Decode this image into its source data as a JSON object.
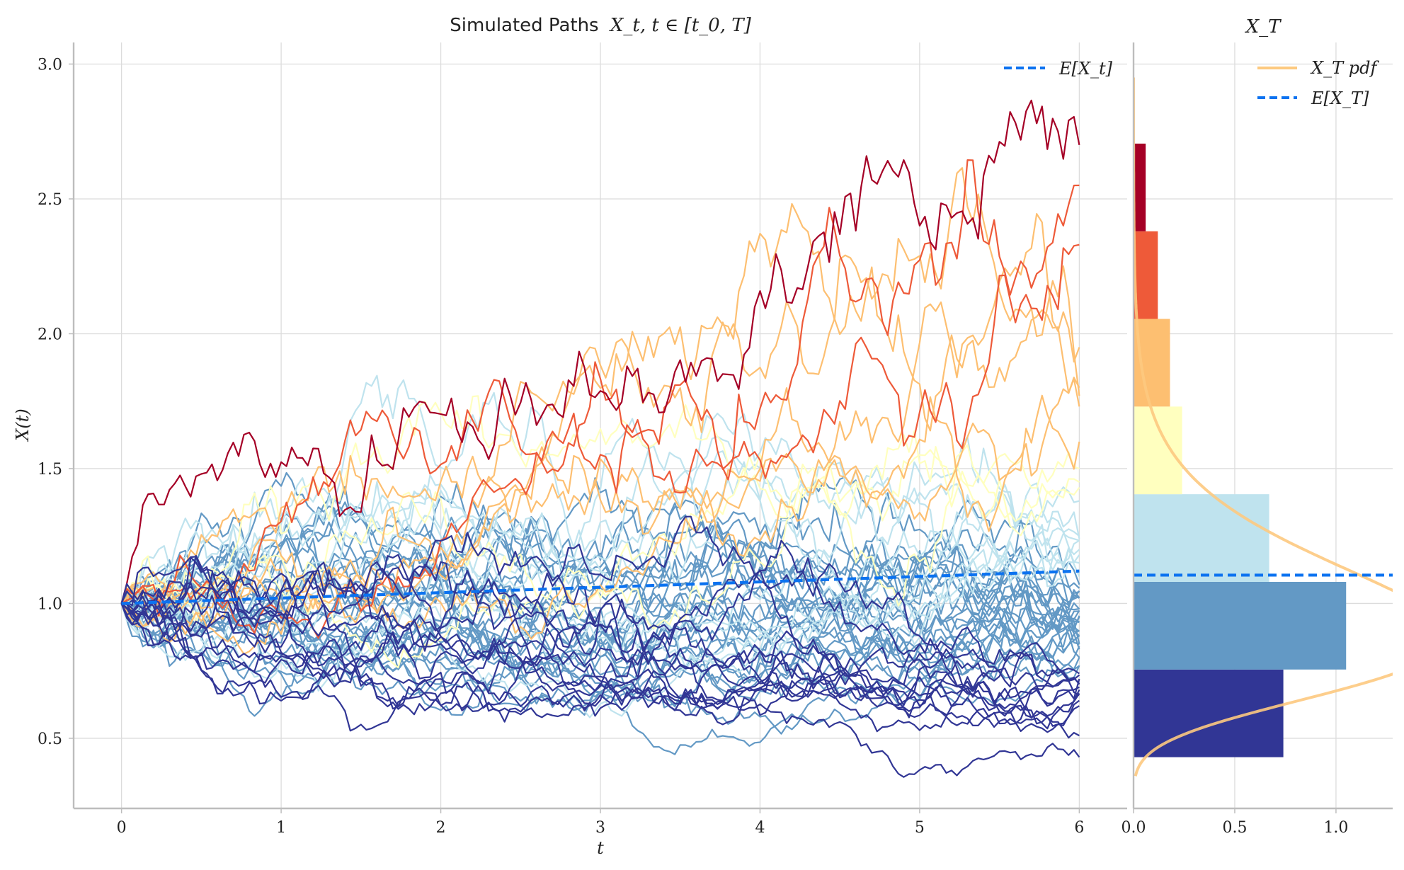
{
  "chart_data": [
    {
      "type": "line",
      "title_text": "Simulated Paths",
      "title_math": "X_t, t ∈ [t_0, T]",
      "xlabel": "t",
      "ylabel": "X(t)",
      "xlim": [
        -0.3,
        6.3
      ],
      "ylim": [
        0.24,
        3.08
      ],
      "xticks": [
        0,
        1,
        2,
        3,
        4,
        5,
        6
      ],
      "xtick_labels": [
        "0",
        "1",
        "2",
        "3",
        "4",
        "5",
        "6"
      ],
      "yticks": [
        0.5,
        1.0,
        1.5,
        2.0,
        2.5,
        3.0
      ],
      "ytick_labels": [
        "0.5",
        "1.0",
        "1.5",
        "2.0",
        "2.5",
        "3.0"
      ],
      "grid": true,
      "legend_position": "top-right",
      "legend": [
        "E[X_t]"
      ],
      "mean_series": {
        "name": "E[X_t]",
        "color": "#0b72f0",
        "style": "dashed",
        "x": [
          0,
          1,
          2,
          3,
          4,
          5,
          6
        ],
        "y": [
          1.0,
          1.02,
          1.04,
          1.06,
          1.08,
          1.1,
          1.12
        ]
      },
      "paths": {
        "count": 60,
        "t_start": 0,
        "t_end": 6,
        "x0": 1.0,
        "description_colormap": [
          "#313695",
          "#4575b4",
          "#74add1",
          "#abd9e9",
          "#ffffbf",
          "#fee090",
          "#fdae61",
          "#f46d43",
          "#d73027",
          "#a50026"
        ],
        "band_colors": [
          "#313695",
          "#6399c5",
          "#bfe3ee",
          "#ffffbf",
          "#fdbf71",
          "#ee5a39",
          "#a50026"
        ],
        "endpoint_samples": [
          2.7,
          2.55,
          2.33,
          1.95,
          1.77,
          1.8,
          1.73,
          1.6,
          1.5,
          1.45,
          1.43,
          1.38,
          1.24,
          1.2,
          1.18,
          1.15,
          1.1,
          1.07,
          1.02,
          0.98,
          0.95,
          0.93,
          0.9,
          0.88,
          0.85,
          0.83,
          0.8,
          0.77,
          0.74,
          0.72,
          0.7,
          0.68,
          0.66,
          0.64,
          0.62,
          0.51,
          0.43
        ]
      }
    },
    {
      "type": "bar",
      "orientation": "horizontal",
      "title_math": "X_T",
      "xlim": [
        0,
        1.28
      ],
      "ylim": [
        0.24,
        3.08
      ],
      "xticks": [
        0.0,
        0.5,
        1.0
      ],
      "xtick_labels": [
        "0.0",
        "0.5",
        "1.0"
      ],
      "bins": [
        {
          "y0": 0.43,
          "y1": 0.755,
          "value": 0.74,
          "color": "#313695"
        },
        {
          "y0": 0.755,
          "y1": 1.08,
          "value": 1.05,
          "color": "#6399c5"
        },
        {
          "y0": 1.08,
          "y1": 1.405,
          "value": 0.67,
          "color": "#bfe3ee"
        },
        {
          "y0": 1.405,
          "y1": 1.73,
          "value": 0.24,
          "color": "#ffffbf"
        },
        {
          "y0": 1.73,
          "y1": 2.055,
          "value": 0.18,
          "color": "#fdbf71"
        },
        {
          "y0": 2.055,
          "y1": 2.38,
          "value": 0.12,
          "color": "#ee5a39"
        },
        {
          "y0": 2.38,
          "y1": 2.705,
          "value": 0.06,
          "color": "#a50026"
        }
      ],
      "pdf_series": {
        "name": "X_T pdf",
        "color": "#fdc97f",
        "shape": "lognormal",
        "mu": -0.05,
        "sigma": 0.28,
        "y_range": [
          0.36,
          2.95
        ]
      },
      "mean_line": {
        "name": "E[X_T]",
        "value": 1.105,
        "color": "#0b72f0",
        "style": "dashed"
      },
      "legend_position": "top-right",
      "legend": [
        "X_T pdf",
        "E[X_T]"
      ]
    }
  ]
}
